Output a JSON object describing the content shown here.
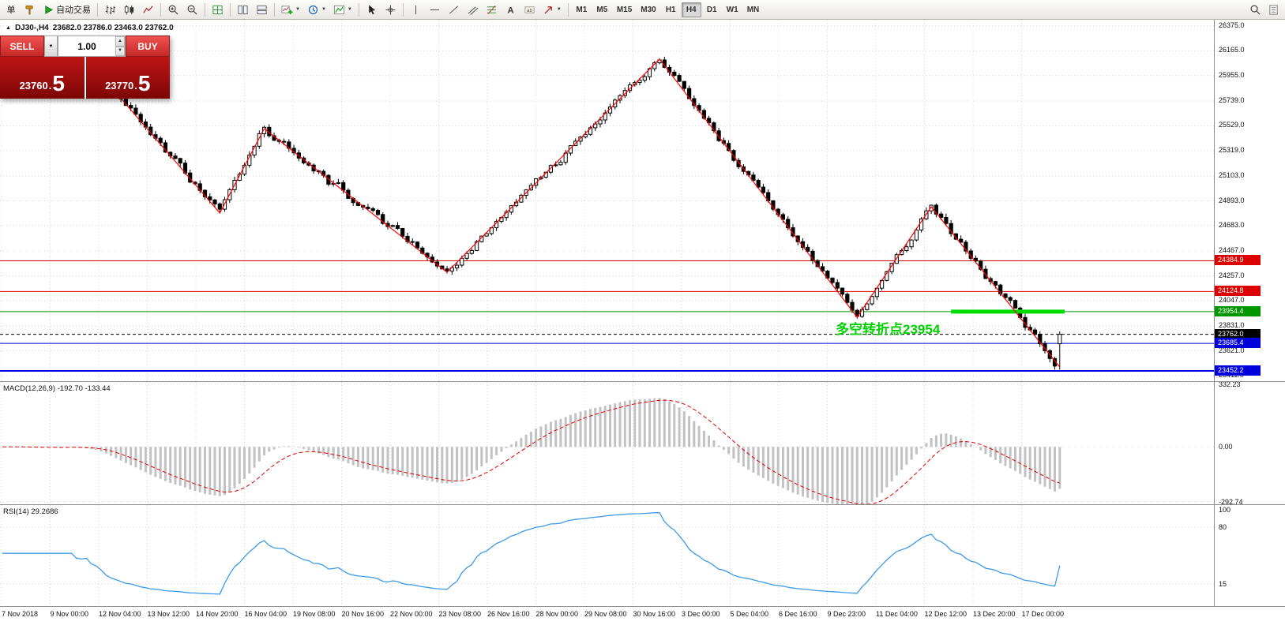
{
  "toolbar": {
    "items": [
      {
        "type": "button",
        "name": "new-order-button",
        "label": "单"
      },
      {
        "type": "button",
        "name": "hammer-button",
        "icon": "hammer"
      },
      {
        "type": "button",
        "name": "autotrading-button",
        "icon": "autotrade",
        "label": "自动交易"
      },
      {
        "type": "sep"
      },
      {
        "type": "button",
        "name": "bar-chart-button",
        "icon": "bars"
      },
      {
        "type": "button",
        "name": "candle-chart-button",
        "icon": "candles"
      },
      {
        "type": "button",
        "name": "line-chart-button",
        "icon": "linechart"
      },
      {
        "type": "sep"
      },
      {
        "type": "button",
        "name": "zoom-in-button",
        "icon": "zoomin"
      },
      {
        "type": "button",
        "name": "zoom-out-button",
        "icon": "zoomout"
      },
      {
        "type": "sep"
      },
      {
        "type": "button",
        "name": "tile-windows-button",
        "icon": "grid"
      },
      {
        "type": "sep"
      },
      {
        "type": "button",
        "name": "arrange-vertical-button",
        "icon": "tilev"
      },
      {
        "type": "button",
        "name": "arrange-horizontal-button",
        "icon": "tileh"
      },
      {
        "type": "sep"
      },
      {
        "type": "button",
        "name": "new-chart-button",
        "icon": "newchart",
        "dropdown": true
      },
      {
        "type": "button",
        "name": "profiles-button",
        "icon": "cycle",
        "dropdown": true
      },
      {
        "type": "button",
        "name": "indicators-button",
        "icon": "indicator",
        "dropdown": true
      },
      {
        "type": "sep"
      },
      {
        "type": "button",
        "name": "cursor-button",
        "icon": "cursor"
      },
      {
        "type": "button",
        "name": "crosshair-button",
        "icon": "crosshair"
      },
      {
        "type": "sep"
      },
      {
        "type": "button",
        "name": "vertical-line-button",
        "icon": "vline"
      },
      {
        "type": "button",
        "name": "horizontal-line-button",
        "icon": "hline"
      },
      {
        "type": "button",
        "name": "trendline-button",
        "icon": "tline"
      },
      {
        "type": "button",
        "name": "channel-button",
        "icon": "channel"
      },
      {
        "type": "button",
        "name": "fibonacci-button",
        "icon": "fibo"
      },
      {
        "type": "button",
        "name": "text-button",
        "icon": "textA"
      },
      {
        "type": "button",
        "name": "label-button",
        "icon": "labelicon"
      },
      {
        "type": "button",
        "name": "shapes-button",
        "icon": "arrow",
        "dropdown": true
      },
      {
        "type": "sep"
      }
    ],
    "timeframes": [
      {
        "label": "M1"
      },
      {
        "label": "M5"
      },
      {
        "label": "M15"
      },
      {
        "label": "M30"
      },
      {
        "label": "H1"
      },
      {
        "label": "H4",
        "active": true
      },
      {
        "label": "D1"
      },
      {
        "label": "W1"
      },
      {
        "label": "MN"
      }
    ],
    "right_items": [
      {
        "name": "search-button",
        "icon": "search"
      },
      {
        "name": "new-window-button",
        "icon": "doc"
      }
    ]
  },
  "trade_panel": {
    "sell_label": "SELL",
    "buy_label": "BUY",
    "volume": "1.00",
    "sell_price_main": "23760",
    "sell_price_pip": "5",
    "buy_price_main": "23770",
    "buy_price_pip": "5"
  },
  "chart_header": {
    "symbol": "DJ30-,H4",
    "ohlc": "23682.0 23786.0 23463.0 23762.0"
  },
  "annotation": {
    "text": "多空转折点23954",
    "color": "#00d200"
  },
  "price_axis": {
    "labels": [
      "26375.0",
      "26165.0",
      "25955.0",
      "25739.0",
      "25529.0",
      "25319.0",
      "25103.0",
      "24893.0",
      "24683.0",
      "24467.0",
      "24257.0",
      "24047.0",
      "23831.0",
      "23621.0",
      "23411.0"
    ]
  },
  "macd": {
    "label": "MACD(12,26,9) -192.70 -133.44",
    "axis": [
      "332.23",
      "0.00",
      "-292.74"
    ]
  },
  "rsi": {
    "label": "RSI(14) 29.2686",
    "axis": [
      "100",
      "80",
      "15"
    ]
  },
  "time_axis": [
    "7 Nov 2018",
    "9 Nov 00:00",
    "12 Nov 04:00",
    "13 Nov 12:00",
    "14 Nov 20:00",
    "16 Nov 04:00",
    "19 Nov 08:00",
    "20 Nov 16:00",
    "22 Nov 00:00",
    "23 Nov 08:00",
    "26 Nov 16:00",
    "28 Nov 00:00",
    "29 Nov 08:00",
    "30 Nov 16:00",
    "3 Dec 00:00",
    "5 Dec 04:00",
    "6 Dec 16:00",
    "9 Dec 23:00",
    "11 Dec 04:00",
    "12 Dec 12:00",
    "13 Dec 20:00",
    "17 Dec 00:00"
  ],
  "chart_data": {
    "type": "candlestick",
    "symbol": "DJ30-",
    "timeframe": "H4",
    "bars": 215,
    "bar_width": 6.256,
    "price_range": [
      23365,
      26428
    ],
    "zigzag": [
      [
        17,
        26100
      ],
      [
        44,
        24790
      ],
      [
        53,
        25505
      ],
      [
        90,
        24288
      ],
      [
        133,
        26094
      ],
      [
        173,
        23907
      ],
      [
        188,
        24843
      ],
      [
        214,
        23485
      ]
    ],
    "last_bar": {
      "open": 23682.0,
      "high": 23786.0,
      "low": 23463.0,
      "close": 23762.0
    },
    "hlines": [
      {
        "price": 24384.9,
        "label": "24384.9",
        "color": "#dd0000",
        "style": "solid",
        "width": 1
      },
      {
        "price": 24124.8,
        "label": "24124.8",
        "color": "#dd0000",
        "style": "solid",
        "width": 1
      },
      {
        "price": 23954.4,
        "label": "23954.4",
        "color": "#009600",
        "style": "solid",
        "width": 1
      },
      {
        "price": 23762.0,
        "label": "23762.0",
        "color": "#000000",
        "style": "dash",
        "width": 1
      },
      {
        "price": 23685.4,
        "label": "23685.4",
        "color": "#0000dc",
        "style": "solid",
        "width": 1
      },
      {
        "price": 23452.2,
        "label": "23452.2",
        "color": "#0000dc",
        "style": "solid",
        "width": 2
      }
    ],
    "green_segment": {
      "price": 23954.4,
      "x1_bar": 192,
      "x2_bar": 215,
      "color": "#00dc00",
      "thickness": 5
    },
    "macd_scale": [
      345,
      -305
    ],
    "macd_current": {
      "macd": -192.7,
      "signal": -133.44
    },
    "rsi_current": 29.2686,
    "rsi_levels": [
      80,
      15
    ]
  }
}
